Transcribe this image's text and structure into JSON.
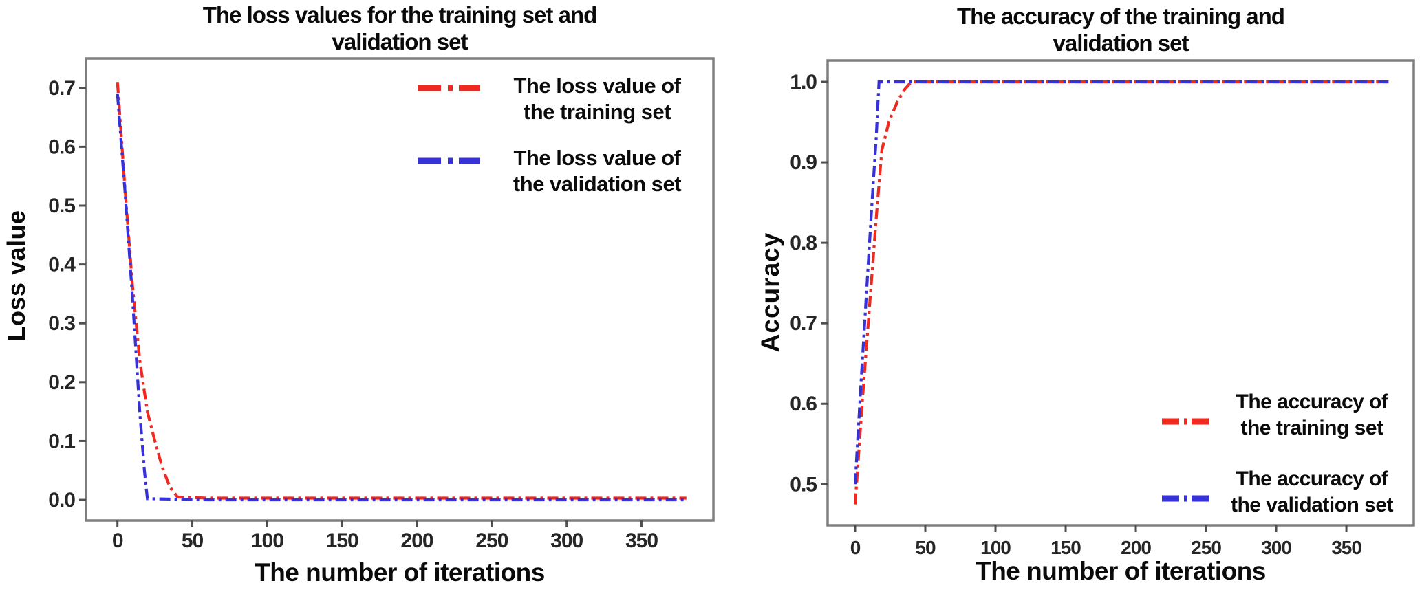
{
  "figure": {
    "background": "#ffffff"
  },
  "chart_data": [
    {
      "type": "line",
      "title": "The loss values for the training set and validation set",
      "title_lines": [
        "The loss values for the training set and",
        "validation set"
      ],
      "xlabel": "The number of iterations",
      "ylabel": "Loss value",
      "xlim": [
        -21,
        398
      ],
      "ylim": [
        -0.035,
        0.75
      ],
      "xticks": [
        0,
        50,
        100,
        150,
        200,
        250,
        300,
        350
      ],
      "xtick_labels": [
        "0",
        "50",
        "100",
        "150",
        "200",
        "250",
        "300",
        "350"
      ],
      "yticks": [
        0.0,
        0.1,
        0.2,
        0.3,
        0.4,
        0.5,
        0.6,
        0.7
      ],
      "ytick_labels": [
        "0.0",
        "0.1",
        "0.2",
        "0.3",
        "0.4",
        "0.5",
        "0.6",
        "0.7"
      ],
      "grid": false,
      "legend_position": "upper right",
      "axis_color": "#7e7e7e",
      "tick_color": "#4f4f4f",
      "series": [
        {
          "name": "The loss value of the training set",
          "label_lines": [
            "The loss value of",
            "the training set"
          ],
          "color": "#ee2a21",
          "linestyle": "dash-dot",
          "x": [
            0,
            5,
            10,
            15,
            20,
            25,
            30,
            35,
            40,
            60,
            120,
            200,
            300,
            380
          ],
          "y": [
            0.71,
            0.53,
            0.365,
            0.235,
            0.15,
            0.1,
            0.055,
            0.022,
            0.005,
            0.003,
            0.003,
            0.003,
            0.003,
            0.003
          ]
        },
        {
          "name": "The loss value of the validation set",
          "label_lines": [
            "The loss value of",
            "the validation set"
          ],
          "color": "#3732d8",
          "linestyle": "dash-dot",
          "x": [
            0,
            5,
            10,
            15,
            18,
            20,
            60,
            120,
            200,
            300,
            380
          ],
          "y": [
            0.69,
            0.525,
            0.345,
            0.145,
            0.05,
            0.002,
            0.0,
            0.0,
            0.0,
            0.0,
            0.0
          ]
        }
      ]
    },
    {
      "type": "line",
      "title": "The accuracy of the training and validation set",
      "title_lines": [
        "The accuracy of the training and",
        "validation set"
      ],
      "xlabel": "The number of iterations",
      "ylabel": "Accuracy",
      "xlim": [
        -19.6,
        398
      ],
      "ylim": [
        0.449,
        1.0265
      ],
      "xticks": [
        0,
        50,
        100,
        150,
        200,
        250,
        300,
        350
      ],
      "xtick_labels": [
        "0",
        "50",
        "100",
        "150",
        "200",
        "250",
        "300",
        "350"
      ],
      "yticks": [
        0.5,
        0.6,
        0.7,
        0.8,
        0.9,
        1.0
      ],
      "ytick_labels": [
        "0.5",
        "0.6",
        "0.7",
        "0.8",
        "0.9",
        "1.0"
      ],
      "grid": false,
      "legend_position": "lower right",
      "axis_color": "#7e7e7e",
      "tick_color": "#4f4f4f",
      "series": [
        {
          "name": "The accuracy of the training set",
          "label_lines": [
            "The accuracy of",
            "the training set"
          ],
          "color": "#ee2a21",
          "linestyle": "dash-dot",
          "x": [
            0,
            5,
            10,
            15,
            19,
            24,
            30,
            35,
            40,
            80,
            160,
            260,
            380
          ],
          "y": [
            0.475,
            0.6,
            0.715,
            0.83,
            0.915,
            0.95,
            0.975,
            0.99,
            1.0,
            1.0,
            1.0,
            1.0,
            1.0
          ]
        },
        {
          "name": "The accuracy of the validation set",
          "label_lines": [
            "The accuracy of",
            "the validation set"
          ],
          "color": "#3732d8",
          "linestyle": "dash-dot",
          "x": [
            0,
            4,
            8,
            12,
            15,
            17,
            80,
            160,
            260,
            380
          ],
          "y": [
            0.5,
            0.62,
            0.735,
            0.85,
            0.93,
            1.0,
            1.0,
            1.0,
            1.0,
            1.0
          ]
        }
      ]
    }
  ]
}
